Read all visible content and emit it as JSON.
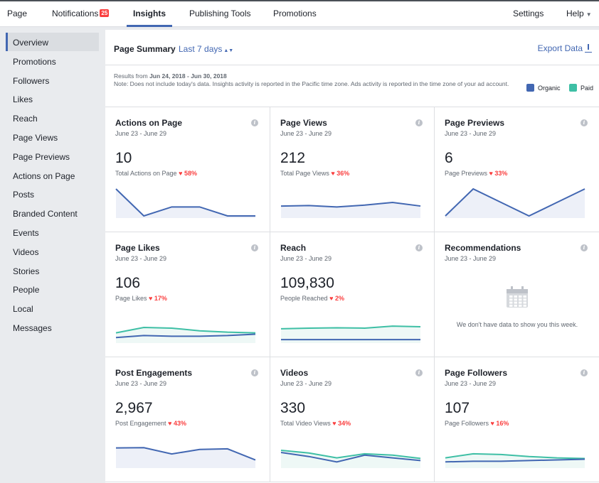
{
  "nav": {
    "items": [
      {
        "label": "Page"
      },
      {
        "label": "Notifications",
        "badge": "25"
      },
      {
        "label": "Insights",
        "active": true
      },
      {
        "label": "Publishing Tools"
      },
      {
        "label": "Promotions"
      },
      {
        "label": "Settings"
      },
      {
        "label": "Help"
      }
    ]
  },
  "sidebar": {
    "items": [
      {
        "label": "Overview",
        "active": true
      },
      {
        "label": "Promotions"
      },
      {
        "label": "Followers"
      },
      {
        "label": "Likes"
      },
      {
        "label": "Reach"
      },
      {
        "label": "Page Views"
      },
      {
        "label": "Page Previews"
      },
      {
        "label": "Actions on Page"
      },
      {
        "label": "Posts"
      },
      {
        "label": "Branded Content"
      },
      {
        "label": "Events"
      },
      {
        "label": "Videos"
      },
      {
        "label": "Stories"
      },
      {
        "label": "People"
      },
      {
        "label": "Local"
      },
      {
        "label": "Messages"
      }
    ]
  },
  "summary": {
    "title": "Page Summary",
    "range_select": "Last 7 days",
    "export_label": "Export Data",
    "results_prefix": "Results from ",
    "results_range": "Jun 24, 2018 - Jun 30, 2018",
    "note": "Note: Does not include today's data. Insights activity is reported in the Pacific time zone. Ads activity is reported in the time zone of your ad account."
  },
  "legend": {
    "organic_label": "Organic",
    "paid_label": "Paid",
    "organic_color": "#4267b2",
    "paid_color": "#3ebfa5"
  },
  "cards": [
    {
      "title": "Actions on Page",
      "date": "June 23 - June 29",
      "value": "10",
      "label": "Total Actions on Page",
      "delta": "58%",
      "organic": [
        3,
        0,
        1,
        1,
        0,
        0
      ],
      "paid": null,
      "ymax": 3
    },
    {
      "title": "Page Views",
      "date": "June 23 - June 29",
      "value": "212",
      "label": "Total Page Views",
      "delta": "36%",
      "organic": [
        22,
        23,
        20,
        24,
        30,
        22
      ],
      "paid": null,
      "ymax": 60
    },
    {
      "title": "Page Previews",
      "date": "June 23 - June 29",
      "value": "6",
      "label": "Page Previews",
      "delta": "33%",
      "organic": [
        0,
        2,
        1,
        0,
        1,
        2
      ],
      "paid": null,
      "ymax": 2
    },
    {
      "title": "Page Likes",
      "date": "June 23 - June 29",
      "value": "106",
      "label": "Page Likes",
      "delta": "17%",
      "organic": [
        5,
        8,
        7,
        7,
        8,
        10
      ],
      "paid": [
        12,
        20,
        19,
        15,
        13,
        12
      ],
      "ymax": 40
    },
    {
      "title": "Reach",
      "date": "June 23 - June 29",
      "value": "109,830",
      "label": "People Reached",
      "delta": "2%",
      "organic": [
        2,
        2,
        2,
        2,
        2,
        2
      ],
      "paid": [
        18,
        19,
        19.5,
        19,
        22,
        21
      ],
      "ymax": 40
    },
    {
      "title": "Recommendations",
      "date": "June 23 - June 29",
      "empty": "We don't have data to show you this week."
    },
    {
      "title": "Post Engagements",
      "date": "June 23 - June 29",
      "value": "2,967",
      "label": "Post Engagement",
      "delta": "43%",
      "organic": [
        600,
        610,
        400,
        550,
        570,
        200
      ],
      "paid": null,
      "ymax": 900
    },
    {
      "title": "Videos",
      "date": "June 23 - June 29",
      "value": "330",
      "label": "Total Video Views",
      "delta": "34%",
      "organic": [
        50,
        35,
        15,
        40,
        30,
        20
      ],
      "paid": [
        58,
        48,
        30,
        45,
        40,
        28
      ],
      "ymax": 100
    },
    {
      "title": "Page Followers",
      "date": "June 23 - June 29",
      "value": "107",
      "label": "Page Followers",
      "delta": "16%",
      "organic": [
        6,
        7,
        7,
        8,
        9,
        10
      ],
      "paid": [
        12,
        18,
        17,
        14,
        12,
        11
      ],
      "ymax": 40
    }
  ]
}
